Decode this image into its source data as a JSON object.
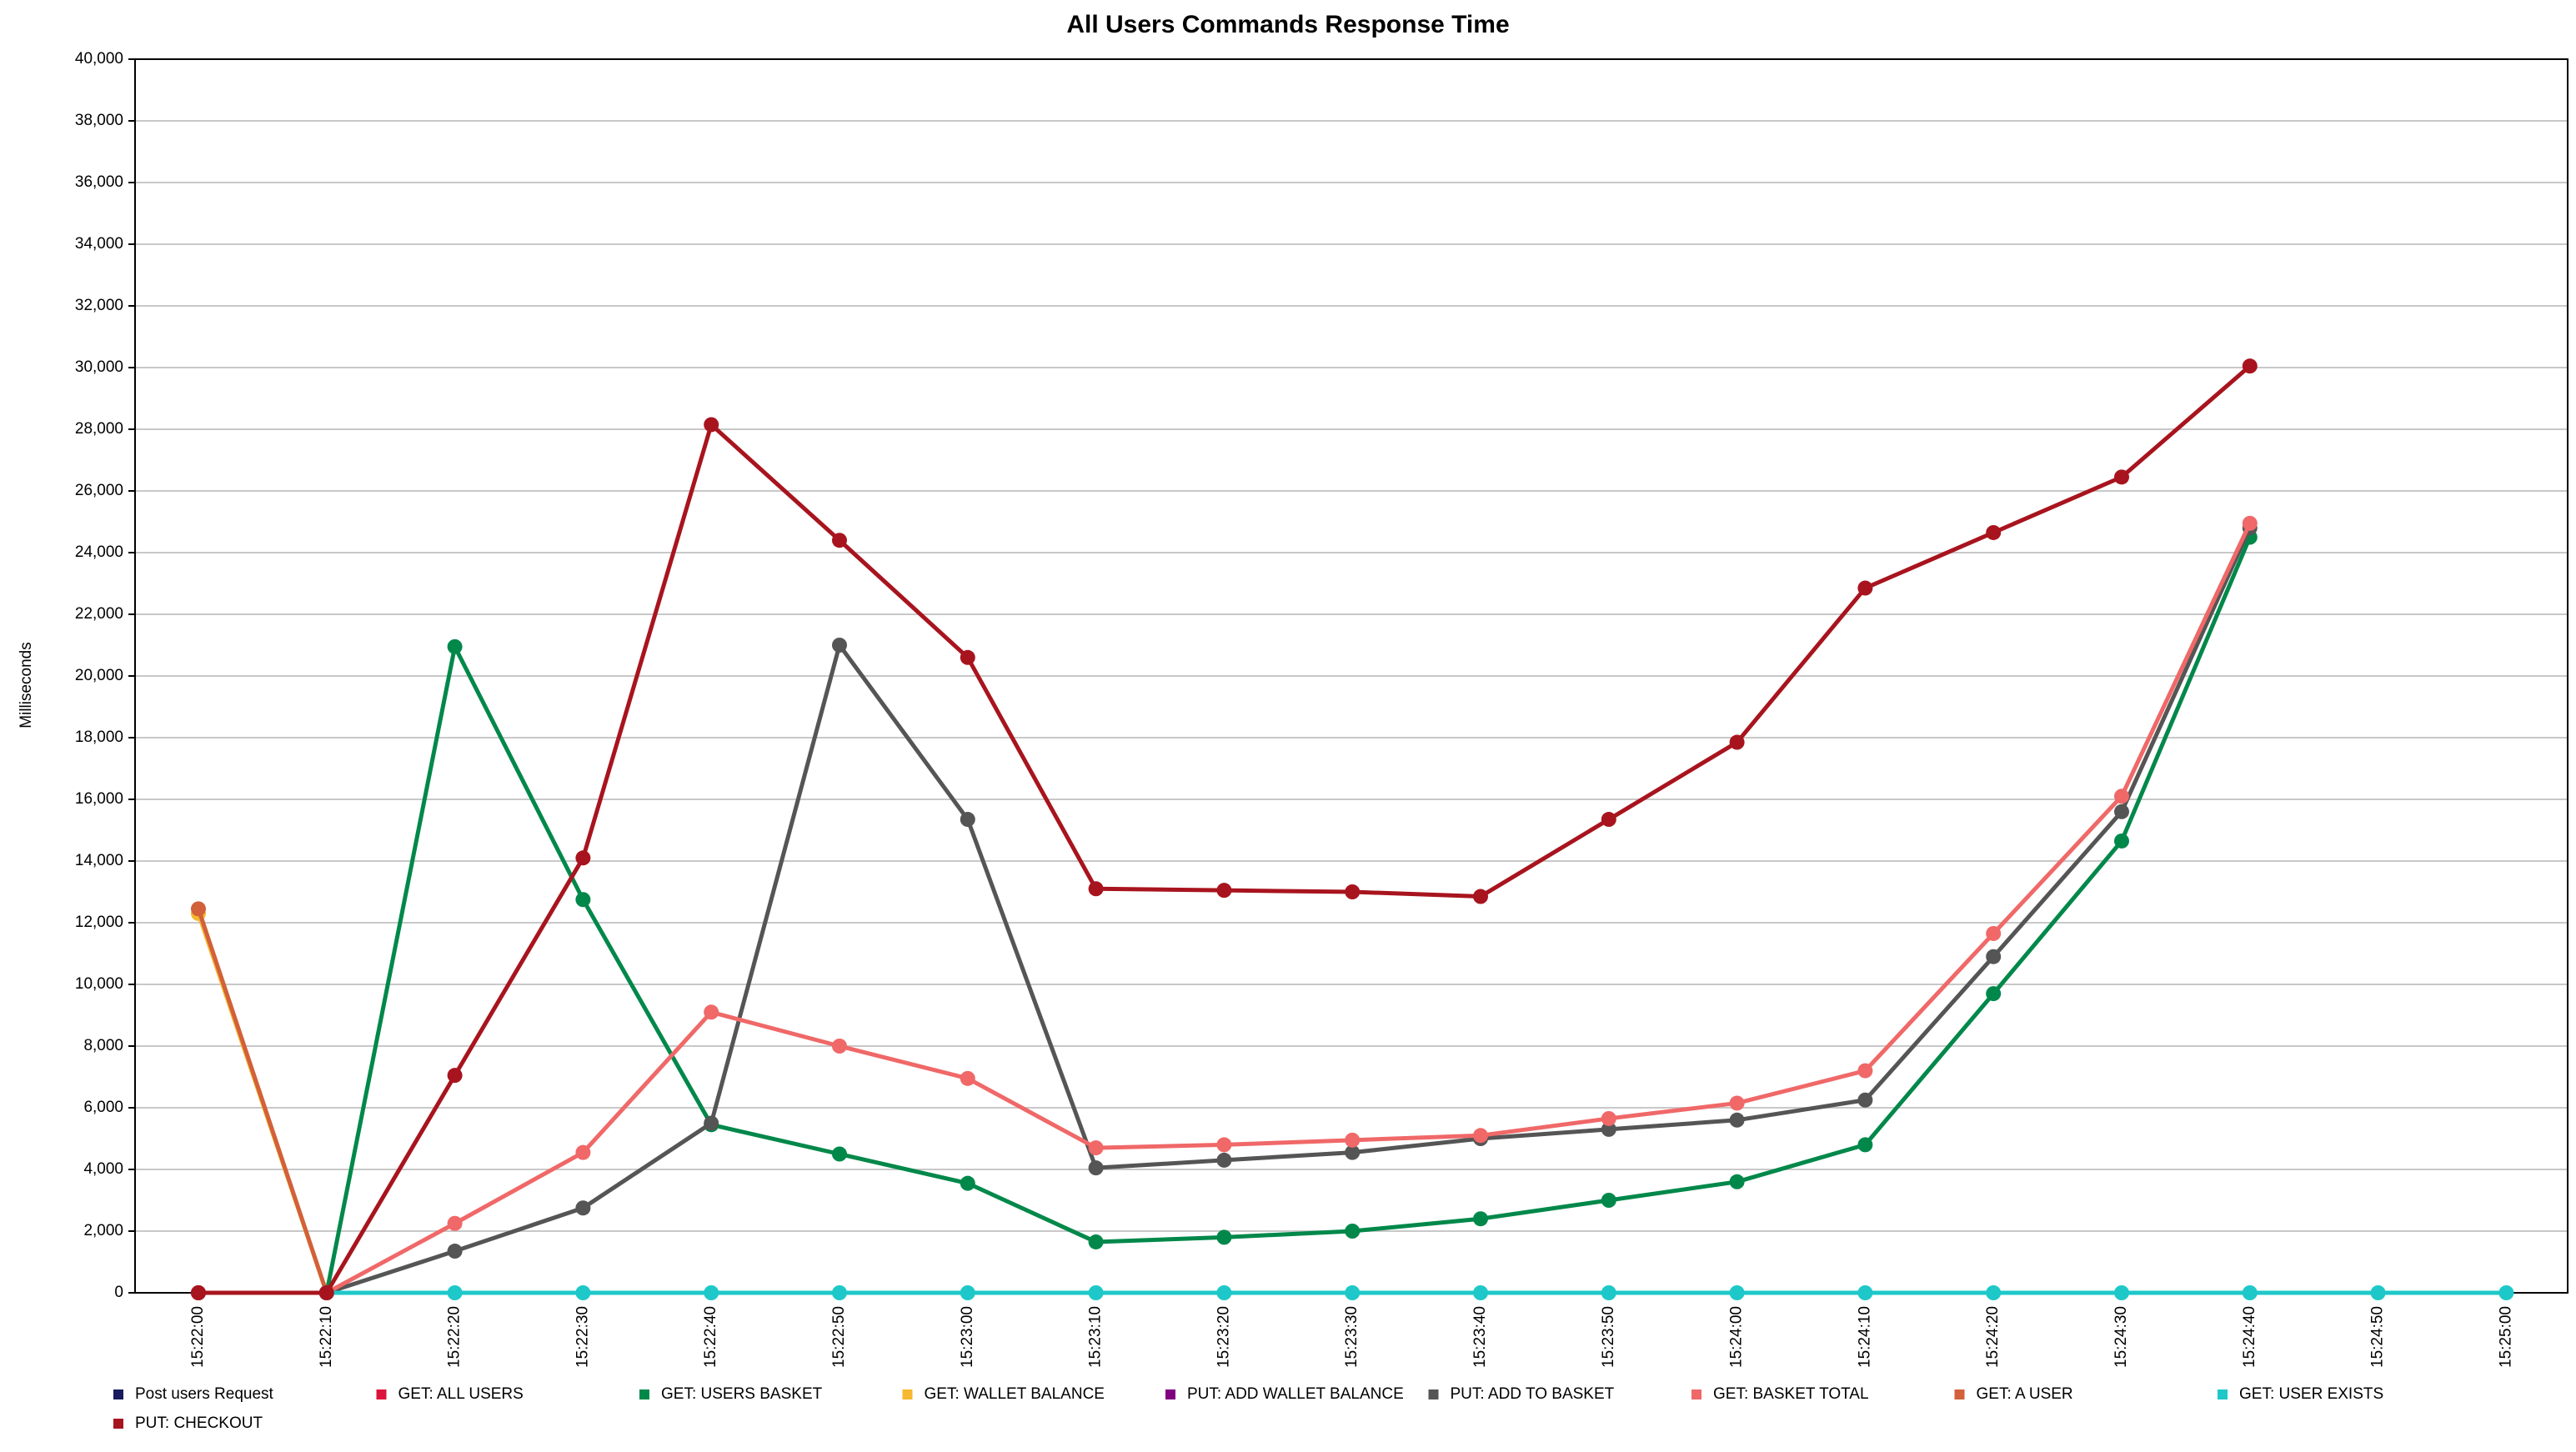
{
  "chart_data": {
    "type": "line",
    "title": "All Users Commands Response Time",
    "y_label": "Milliseconds",
    "categories": [
      "15:22:00",
      "15:22:10",
      "15:22:20",
      "15:22:30",
      "15:22:40",
      "15:22:50",
      "15:23:00",
      "15:23:10",
      "15:23:20",
      "15:23:30",
      "15:23:40",
      "15:23:50",
      "15:24:00",
      "15:24:10",
      "15:24:20",
      "15:24:30",
      "15:24:40",
      "15:24:50",
      "15:25:00"
    ],
    "ylim": [
      0,
      40000
    ],
    "yticks": [
      0,
      {
        "value": 2000,
        "label": "2,000"
      },
      {
        "value": 4000,
        "label": "4,000"
      },
      {
        "value": 6000,
        "label": "6,000"
      },
      {
        "value": 8000,
        "label": "8,000"
      },
      {
        "value": 10000,
        "label": "10,000"
      },
      {
        "value": 12000,
        "label": "12,000"
      },
      {
        "value": 14000,
        "label": "14,000"
      },
      {
        "value": 16000,
        "label": "16,000"
      },
      {
        "value": 18000,
        "label": "18,000"
      },
      {
        "value": 20000,
        "label": "20,000"
      },
      {
        "value": 22000,
        "label": "22,000"
      },
      {
        "value": 24000,
        "label": "24,000"
      },
      {
        "value": 26000,
        "label": "26,000"
      },
      {
        "value": 28000,
        "label": "28,000"
      },
      {
        "value": 30000,
        "label": "30,000"
      },
      {
        "value": 32000,
        "label": "32,000"
      },
      {
        "value": 34000,
        "label": "34,000"
      },
      {
        "value": 36000,
        "label": "36,000"
      },
      {
        "value": 38000,
        "label": "38,000"
      },
      {
        "value": 40000,
        "label": "40,000"
      }
    ],
    "grid": true,
    "series": [
      {
        "name": "Post users Request",
        "color": "#1a1a5e",
        "values": [
          0,
          0,
          null,
          null,
          null,
          null,
          null,
          null,
          null,
          null,
          null,
          null,
          null,
          null,
          null,
          null,
          null,
          null,
          null
        ]
      },
      {
        "name": "GET: ALL USERS",
        "color": "#dc143c",
        "values": [
          0,
          0,
          null,
          null,
          null,
          null,
          null,
          null,
          null,
          null,
          null,
          null,
          null,
          null,
          null,
          null,
          null,
          null,
          null
        ]
      },
      {
        "name": "GET: USERS BASKET",
        "color": "#00884a",
        "values": [
          null,
          0,
          20950,
          12750,
          5450,
          4500,
          3550,
          1650,
          1800,
          2000,
          2400,
          3000,
          3600,
          4800,
          9700,
          14650,
          24500,
          null,
          null
        ]
      },
      {
        "name": "GET: WALLET BALANCE",
        "color": "#f5b82e",
        "values": [
          12300,
          0,
          null,
          null,
          null,
          null,
          null,
          null,
          null,
          null,
          null,
          null,
          null,
          null,
          null,
          null,
          null,
          null,
          null
        ]
      },
      {
        "name": "PUT: ADD WALLET BALANCE",
        "color": "#800080",
        "values": [
          null,
          0,
          null,
          null,
          null,
          null,
          null,
          null,
          null,
          null,
          null,
          null,
          null,
          null,
          null,
          null,
          null,
          null,
          null
        ]
      },
      {
        "name": "PUT: ADD TO BASKET",
        "color": "#555555",
        "values": [
          null,
          0,
          1350,
          2750,
          5500,
          21000,
          15350,
          4050,
          4300,
          4550,
          5000,
          5300,
          5600,
          6250,
          10900,
          15600,
          24800,
          null,
          null
        ]
      },
      {
        "name": "GET: BASKET TOTAL",
        "color": "#f06868",
        "values": [
          null,
          0,
          2250,
          4550,
          9100,
          8000,
          6950,
          4700,
          4800,
          4950,
          5100,
          5650,
          6150,
          7200,
          11650,
          16100,
          24950,
          null,
          null
        ]
      },
      {
        "name": "GET: A USER",
        "color": "#d2603a",
        "values": [
          12450,
          0,
          null,
          null,
          null,
          null,
          null,
          null,
          null,
          null,
          null,
          null,
          null,
          null,
          null,
          null,
          null,
          null,
          null
        ]
      },
      {
        "name": "GET: USER EXISTS",
        "color": "#1ec8c8",
        "values": [
          null,
          0,
          0,
          0,
          0,
          0,
          0,
          0,
          0,
          0,
          0,
          0,
          0,
          0,
          0,
          0,
          0,
          0,
          0
        ]
      },
      {
        "name": "PUT: CHECKOUT",
        "color": "#a8141e",
        "values": [
          0,
          0,
          7050,
          14100,
          28150,
          24400,
          20600,
          13100,
          13050,
          13000,
          12850,
          15350,
          17850,
          22850,
          24650,
          26450,
          30050,
          null,
          null
        ]
      }
    ]
  }
}
